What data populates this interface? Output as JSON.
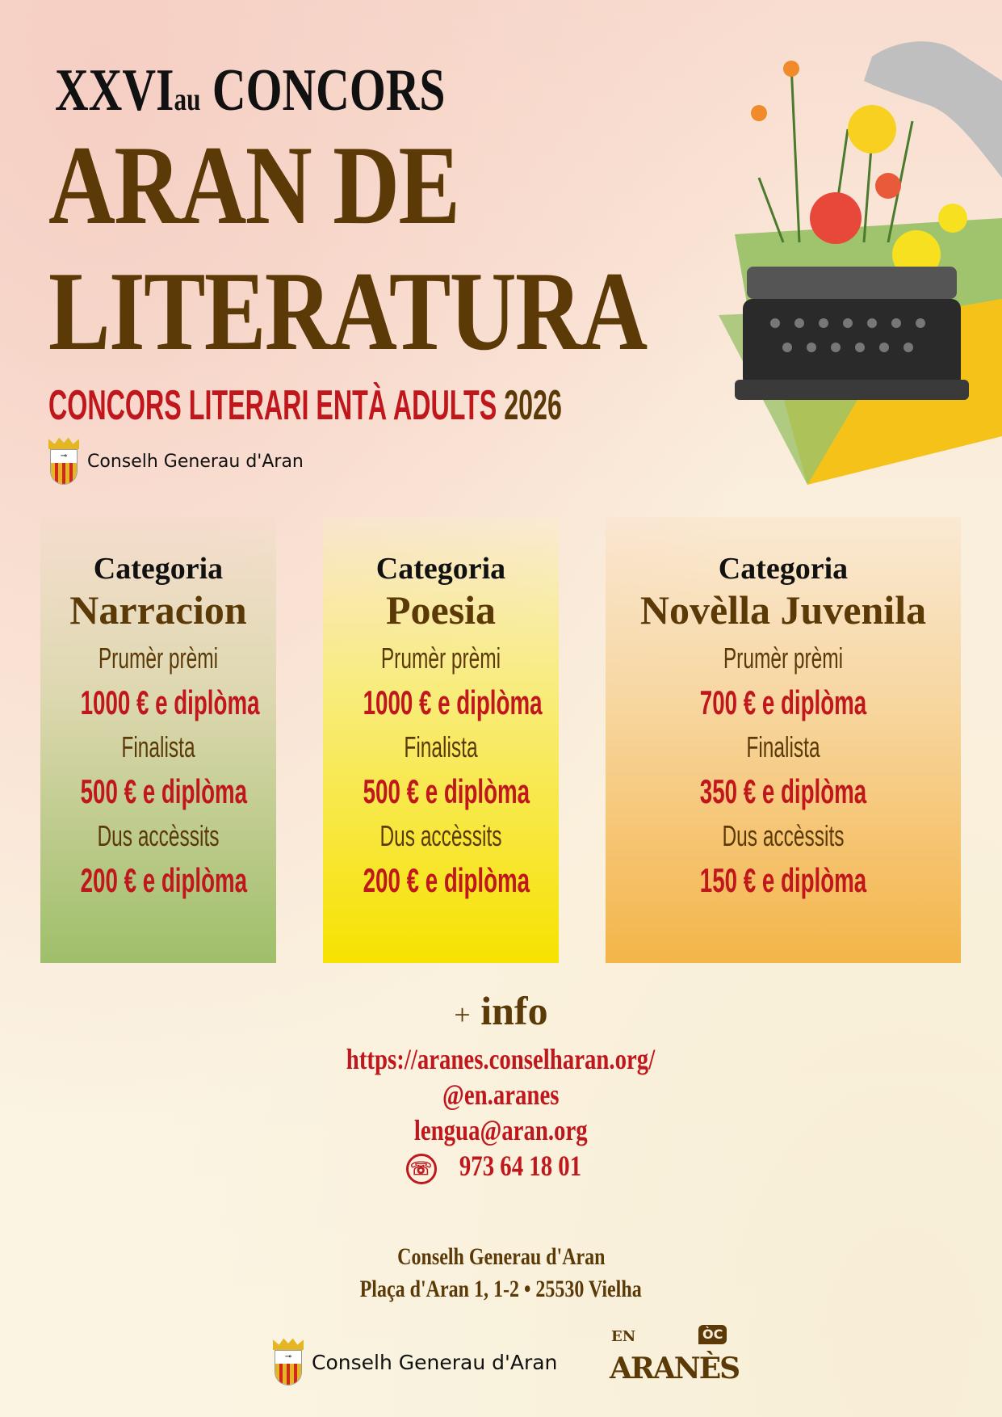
{
  "header": {
    "edition": "XXVI",
    "edition_suffix": "au",
    "concours": "CONCORS",
    "title_line1": "ARAN DE",
    "title_line2": "LITERATURA",
    "subtitle": "CONCORS LITERARI ENTÀ ADULTS",
    "year": "2026",
    "org": "Conselh Generau d'Aran"
  },
  "categories": [
    {
      "label": "Categoria",
      "name": "Narracion",
      "prizes": [
        {
          "label": "Prumèr prèmi",
          "value": "1000 € e diplòma"
        },
        {
          "label": "Finalista",
          "value": "500 € e diplòma"
        },
        {
          "label": "Dus accèssits",
          "value": "200 € e diplòma"
        }
      ]
    },
    {
      "label": "Categoria",
      "name": "Poesia",
      "prizes": [
        {
          "label": "Prumèr prèmi",
          "value": "1000 € e diplòma"
        },
        {
          "label": "Finalista",
          "value": "500 € e diplòma"
        },
        {
          "label": "Dus accèssits",
          "value": "200 € e diplòma"
        }
      ]
    },
    {
      "label": "Categoria",
      "name": "Novèlla Juvenila",
      "prizes": [
        {
          "label": "Prumèr prèmi",
          "value": "700 € e diplòma"
        },
        {
          "label": "Finalista",
          "value": "350 € e diplòma"
        },
        {
          "label": "Dus accèssits",
          "value": "150 € e diplòma"
        }
      ]
    }
  ],
  "info": {
    "plus": "+",
    "title": "info",
    "url": "https://aranes.conselharan.org/",
    "social": "@en.aranes",
    "email": "lengua@aran.org",
    "phone": "973 64 18 01",
    "phone_icon": "☏"
  },
  "address": {
    "line1": "Conselh Generau d'Aran",
    "line2": "Plaça d'Aran 1, 1-2 • 25530 Vielha"
  },
  "footer": {
    "org": "Conselh Generau d'Aran",
    "brand_en": "EN",
    "brand_aranes": "ARANÈS",
    "brand_oc": "ÒC"
  },
  "colors": {
    "brown": "#5c3a08",
    "red": "#c0171d",
    "green": "#9fbf6a",
    "yellow": "#f7e200",
    "orange": "#f4b549"
  }
}
